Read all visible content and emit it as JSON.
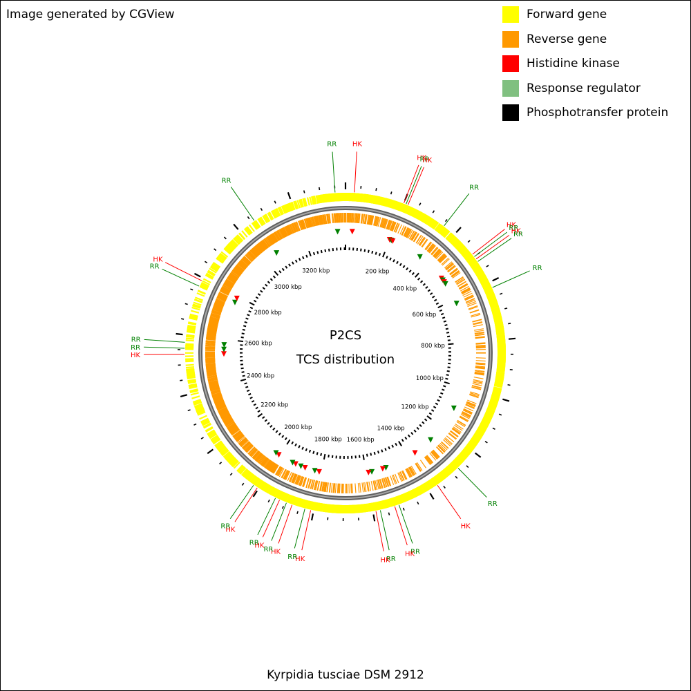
{
  "watermark": "Image generated by CGView",
  "legend": [
    {
      "label": "Forward gene",
      "color": "#ffff00"
    },
    {
      "label": "Reverse gene",
      "color": "#ff9900"
    },
    {
      "label": "Histidine kinase",
      "color": "#ff0000"
    },
    {
      "label": "Response regulator",
      "color": "#80c080"
    },
    {
      "label": "Phosphotransfer protein",
      "color": "#000000"
    }
  ],
  "map": {
    "title": "P2CS",
    "subtitle": "TCS distribution",
    "organism": "Kyrpidia tusciae DSM 2912",
    "genome_length_kbp": 3385,
    "tick_labels": [
      "200 kbp",
      "400 kbp",
      "600 kbp",
      "800 kbp",
      "1000 kbp",
      "1200 kbp",
      "1400 kbp",
      "1600 kbp",
      "1800 kbp",
      "2000 kbp",
      "2200 kbp",
      "2400 kbp",
      "2600 kbp",
      "2800 kbp",
      "3000 kbp",
      "3200 kbp"
    ],
    "colors": {
      "forward": "#ffff00",
      "reverse": "#ff9900",
      "hk": "#ff0000",
      "rr": "#008000",
      "backbone": "#777777"
    },
    "callouts": [
      {
        "label": "RR",
        "kbp": -35,
        "type": "rr"
      },
      {
        "label": "HK",
        "kbp": 30,
        "type": "hk"
      },
      {
        "label": "HK",
        "kbp": 200,
        "type": "hk"
      },
      {
        "label": "RR",
        "kbp": 208,
        "type": "rr"
      },
      {
        "label": "HK",
        "kbp": 215,
        "type": "hk"
      },
      {
        "label": "RR",
        "kbp": 355,
        "type": "rr"
      },
      {
        "label": "HK",
        "kbp": 490,
        "type": "hk"
      },
      {
        "label": "RR",
        "kbp": 500,
        "type": "rr"
      },
      {
        "label": "HK",
        "kbp": 510,
        "type": "hk"
      },
      {
        "label": "RR",
        "kbp": 520,
        "type": "rr"
      },
      {
        "label": "RR",
        "kbp": 620,
        "type": "rr"
      },
      {
        "label": "RR",
        "kbp": 1275,
        "type": "rr"
      },
      {
        "label": "HK",
        "kbp": 1365,
        "type": "hk"
      },
      {
        "label": "RR",
        "kbp": 1510,
        "type": "rr"
      },
      {
        "label": "HK",
        "kbp": 1525,
        "type": "hk"
      },
      {
        "label": "RR",
        "kbp": 1575,
        "type": "rr"
      },
      {
        "label": "HK",
        "kbp": 1590,
        "type": "hk"
      },
      {
        "label": "HK",
        "kbp": 1810,
        "type": "hk"
      },
      {
        "label": "RR",
        "kbp": 1830,
        "type": "rr"
      },
      {
        "label": "HK",
        "kbp": 1875,
        "type": "hk"
      },
      {
        "label": "RR",
        "kbp": 1895,
        "type": "rr"
      },
      {
        "label": "HK",
        "kbp": 1920,
        "type": "hk"
      },
      {
        "label": "RR",
        "kbp": 1935,
        "type": "rr"
      },
      {
        "label": "HK",
        "kbp": 2005,
        "type": "hk"
      },
      {
        "label": "RR",
        "kbp": 2020,
        "type": "rr"
      },
      {
        "label": "HK",
        "kbp": 2535,
        "type": "hk"
      },
      {
        "label": "RR",
        "kbp": 2555,
        "type": "rr"
      },
      {
        "label": "RR",
        "kbp": 2575,
        "type": "rr"
      },
      {
        "label": "RR",
        "kbp": 2770,
        "type": "rr"
      },
      {
        "label": "HK",
        "kbp": 2790,
        "type": "hk"
      },
      {
        "label": "RR",
        "kbp": 3060,
        "type": "rr"
      }
    ],
    "markers": [
      {
        "kbp": 30,
        "type": "hk"
      },
      {
        "kbp": -35,
        "type": "rr"
      },
      {
        "kbp": 200,
        "type": "hk"
      },
      {
        "kbp": 208,
        "type": "rr"
      },
      {
        "kbp": 215,
        "type": "hk"
      },
      {
        "kbp": 355,
        "type": "rr"
      },
      {
        "kbp": 490,
        "type": "hk"
      },
      {
        "kbp": 500,
        "type": "rr"
      },
      {
        "kbp": 510,
        "type": "hk"
      },
      {
        "kbp": 520,
        "type": "rr"
      },
      {
        "kbp": 620,
        "type": "rr"
      },
      {
        "kbp": 1100,
        "type": "rr"
      },
      {
        "kbp": 1275,
        "type": "rr"
      },
      {
        "kbp": 1365,
        "type": "hk"
      },
      {
        "kbp": 1510,
        "type": "rr"
      },
      {
        "kbp": 1525,
        "type": "hk"
      },
      {
        "kbp": 1575,
        "type": "rr"
      },
      {
        "kbp": 1590,
        "type": "hk"
      },
      {
        "kbp": 1810,
        "type": "hk"
      },
      {
        "kbp": 1830,
        "type": "rr"
      },
      {
        "kbp": 1875,
        "type": "hk"
      },
      {
        "kbp": 1895,
        "type": "rr"
      },
      {
        "kbp": 1920,
        "type": "hk"
      },
      {
        "kbp": 1935,
        "type": "rr"
      },
      {
        "kbp": 2005,
        "type": "hk"
      },
      {
        "kbp": 2020,
        "type": "rr"
      },
      {
        "kbp": 2535,
        "type": "hk"
      },
      {
        "kbp": 2555,
        "type": "rr"
      },
      {
        "kbp": 2575,
        "type": "rr"
      },
      {
        "kbp": 2770,
        "type": "rr"
      },
      {
        "kbp": 2790,
        "type": "hk"
      },
      {
        "kbp": 3060,
        "type": "rr"
      }
    ]
  }
}
